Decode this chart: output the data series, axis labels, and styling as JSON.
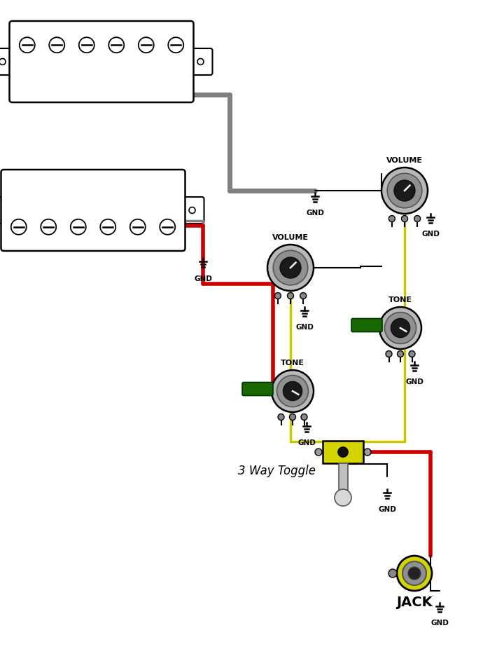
{
  "bg_color": "#ffffff",
  "wire_gray": "#808080",
  "wire_black": "#000000",
  "wire_red": "#cc0000",
  "wire_yellow": "#c8c800",
  "wire_green": "#006600",
  "gnd_text": "GND",
  "volume_text": "VOLUME",
  "tone_text": "TONE",
  "toggle_text": "3 Way Toggle",
  "jack_text": "JACK",
  "fig_width": 7.0,
  "fig_height": 9.26,
  "lw_thick": 4,
  "lw_medium": 2.5,
  "lw_thin": 1.5
}
